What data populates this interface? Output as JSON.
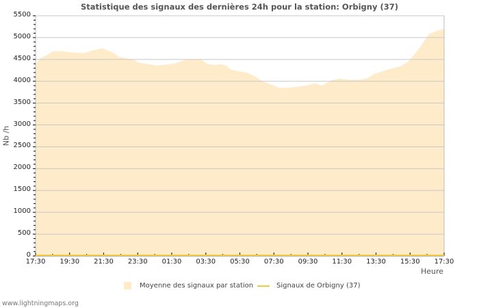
{
  "title": "Statistique des signaux des dernières 24h pour la station: Orbigny (37)",
  "axes": {
    "ylabel": "Nb /h",
    "xlabel": "Heure",
    "yticks": [
      "5500",
      "5000",
      "4500",
      "4000",
      "3500",
      "3000",
      "2500",
      "2000",
      "1500",
      "1000",
      "500",
      "0"
    ],
    "xticks": [
      "17:30",
      "19:30",
      "21:30",
      "23:30",
      "01:30",
      "03:30",
      "05:30",
      "07:30",
      "09:30",
      "11:30",
      "13:30",
      "15:30",
      "17:30"
    ]
  },
  "legend": {
    "items": [
      {
        "label": "Moyenne des signaux par station",
        "color": "#feebc9",
        "kind": "area"
      },
      {
        "label": "Signaux de Orbigny (37)",
        "color": "#f3c93e",
        "kind": "line"
      }
    ]
  },
  "footer": "www.lightningmaps.org",
  "colors": {
    "area": "#feebc9",
    "line": "#f3c93e",
    "grid": "#c8c8c8",
    "axis": "#bbbbbb"
  },
  "chart_data": {
    "type": "area",
    "title": "Statistique des signaux des dernières 24h pour la station: Orbigny (37)",
    "xlabel": "Heure",
    "ylabel": "Nb /h",
    "ylim": [
      0,
      5500
    ],
    "grid": true,
    "legend_position": "bottom",
    "x_tick_labels": [
      "17:30",
      "19:30",
      "21:30",
      "23:30",
      "01:30",
      "03:30",
      "05:30",
      "07:30",
      "09:30",
      "11:30",
      "13:30",
      "15:30",
      "17:30"
    ],
    "series": [
      {
        "name": "Moyenne des signaux par station",
        "type": "area",
        "x_hours_from_start": [
          0,
          0.3,
          0.7,
          1.05,
          1.5,
          1.9,
          2.5,
          2.9,
          3.3,
          3.7,
          3.9,
          4.25,
          4.5,
          4.9,
          5.3,
          5.7,
          6.1,
          6.5,
          7.1,
          7.9,
          8.3,
          8.7,
          9.1,
          9.7,
          10.1,
          10.5,
          10.9,
          11.2,
          11.5,
          11.9,
          12.4,
          12.9,
          13.3,
          13.8,
          14.3,
          14.7,
          15.3,
          15.9,
          16.4,
          16.8,
          17.1,
          17.5,
          17.9,
          18.5,
          19.1,
          19.5,
          19.9,
          20.4,
          20.9,
          21.4,
          21.9,
          22.3,
          22.7,
          23.1,
          23.6,
          24
        ],
        "values": [
          4400,
          4530,
          4610,
          4690,
          4690,
          4670,
          4650,
          4650,
          4700,
          4730,
          4760,
          4700,
          4670,
          4560,
          4530,
          4500,
          4420,
          4400,
          4360,
          4390,
          4420,
          4480,
          4500,
          4500,
          4400,
          4370,
          4390,
          4360,
          4260,
          4230,
          4200,
          4110,
          4010,
          3930,
          3850,
          3850,
          3870,
          3900,
          3950,
          3900,
          3960,
          4040,
          4060,
          4030,
          4040,
          4070,
          4170,
          4230,
          4290,
          4340,
          4450,
          4640,
          4840,
          5080,
          5160,
          5200
        ]
      },
      {
        "name": "Signaux de Orbigny (37)",
        "type": "line",
        "values": "0 throughout"
      }
    ]
  }
}
